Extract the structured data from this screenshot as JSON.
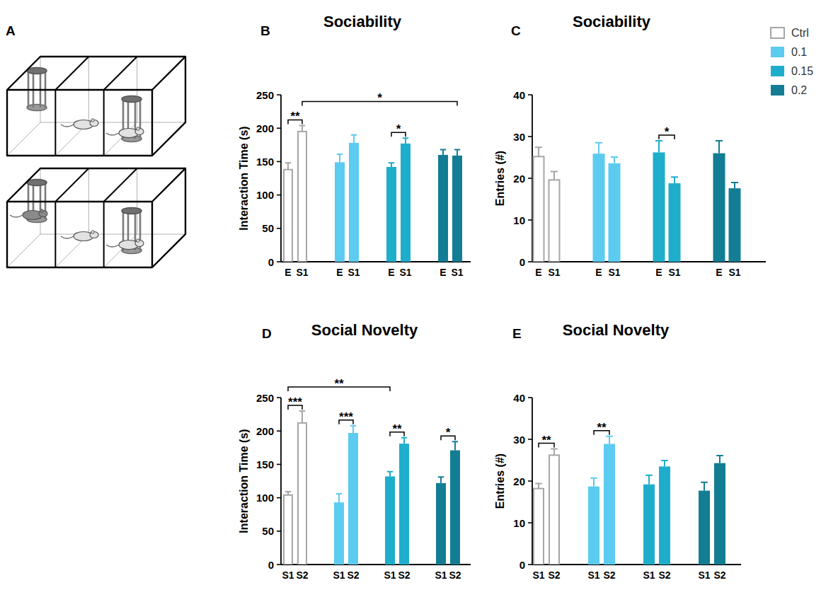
{
  "diagram": {
    "label": "A"
  },
  "chart_data": [
    {
      "type": "bar",
      "panel": "B",
      "title": "Sociability",
      "ylabel": "Interaction Time (s)",
      "categories": [
        "E",
        "S1"
      ],
      "ylim": [
        0,
        250
      ],
      "yticks": [
        0,
        50,
        100,
        150,
        200,
        250
      ],
      "series": [
        {
          "name": "Ctrl",
          "color": "#a6a6a6",
          "type": "hollow",
          "values": [
            138,
            195
          ],
          "errors": [
            10,
            9
          ]
        },
        {
          "name": "0.1",
          "color": "#5ccbf0",
          "type": "bar",
          "values": [
            149,
            178
          ],
          "errors": [
            12,
            12
          ]
        },
        {
          "name": "0.15",
          "color": "#1eaecb",
          "type": "bar",
          "values": [
            142,
            177
          ],
          "errors": [
            6,
            8
          ]
        },
        {
          "name": "0.2",
          "color": "#137d93",
          "type": "bar",
          "values": [
            160,
            159
          ],
          "errors": [
            8,
            9
          ]
        }
      ],
      "annotations": [
        {
          "text": "**",
          "from": {
            "series": 0,
            "category": 0
          },
          "to": {
            "series": 0,
            "category": 1
          }
        },
        {
          "text": "*",
          "from": {
            "series": 0,
            "category": 1
          },
          "to": {
            "series": 3,
            "category": 1
          }
        },
        {
          "text": "*",
          "from": {
            "series": 2,
            "category": 0
          },
          "to": {
            "series": 2,
            "category": 1
          }
        }
      ]
    },
    {
      "type": "bar",
      "panel": "C",
      "title": "Sociability",
      "ylabel": "Entries (#)",
      "legend": "top-right",
      "categories": [
        "E",
        "S1"
      ],
      "ylim": [
        0,
        40
      ],
      "yticks": [
        0,
        10,
        20,
        30,
        40
      ],
      "series": [
        {
          "name": "Ctrl",
          "color": "#a6a6a6",
          "type": "hollow",
          "values": [
            25.2,
            19.6
          ],
          "errors": [
            2.2,
            2
          ]
        },
        {
          "name": "0.1",
          "color": "#5ccbf0",
          "type": "bar",
          "values": [
            25.9,
            23.6
          ],
          "errors": [
            2.6,
            1.5
          ]
        },
        {
          "name": "0.15",
          "color": "#1eaecb",
          "type": "bar",
          "values": [
            26.2,
            18.8
          ],
          "errors": [
            2.8,
            1.5
          ]
        },
        {
          "name": "0.2",
          "color": "#137d93",
          "type": "bar",
          "values": [
            26,
            17.6
          ],
          "errors": [
            3,
            1.4
          ]
        }
      ],
      "annotations": [
        {
          "text": "*",
          "from": {
            "series": 2,
            "category": 0
          },
          "to": {
            "series": 2,
            "category": 1
          }
        }
      ]
    },
    {
      "type": "bar",
      "panel": "D",
      "title": "Social Novelty",
      "ylabel": "Interaction Time (s)",
      "categories": [
        "S1",
        "S2"
      ],
      "ylim": [
        0,
        250
      ],
      "yticks": [
        0,
        50,
        100,
        150,
        200,
        250
      ],
      "series": [
        {
          "name": "Ctrl",
          "color": "#a6a6a6",
          "type": "hollow",
          "values": [
            104,
            212
          ],
          "errors": [
            5,
            18
          ]
        },
        {
          "name": "0.1",
          "color": "#5ccbf0",
          "type": "bar",
          "values": [
            93,
            197
          ],
          "errors": [
            13,
            11
          ]
        },
        {
          "name": "0.15",
          "color": "#1eaecb",
          "type": "bar",
          "values": [
            132,
            181
          ],
          "errors": [
            7,
            9
          ]
        },
        {
          "name": "0.2",
          "color": "#137d93",
          "type": "bar",
          "values": [
            122,
            171
          ],
          "errors": [
            9,
            13
          ]
        }
      ],
      "annotations": [
        {
          "text": "***",
          "from": {
            "series": 0,
            "category": 0
          },
          "to": {
            "series": 0,
            "category": 1
          }
        },
        {
          "text": "**",
          "from": {
            "series": 0,
            "category": 0
          },
          "to": {
            "series": 2,
            "category": 0
          }
        },
        {
          "text": "***",
          "from": {
            "series": 1,
            "category": 0
          },
          "to": {
            "series": 1,
            "category": 1
          }
        },
        {
          "text": "**",
          "from": {
            "series": 2,
            "category": 0
          },
          "to": {
            "series": 2,
            "category": 1
          }
        },
        {
          "text": "*",
          "from": {
            "series": 3,
            "category": 0
          },
          "to": {
            "series": 3,
            "category": 1
          }
        }
      ]
    },
    {
      "type": "bar",
      "panel": "E",
      "title": "Social Novelty",
      "ylabel": "Entries (#)",
      "categories": [
        "S1",
        "S2"
      ],
      "ylim": [
        0,
        40
      ],
      "yticks": [
        0,
        10,
        20,
        30,
        40
      ],
      "series": [
        {
          "name": "Ctrl",
          "color": "#a6a6a6",
          "type": "hollow",
          "values": [
            18.2,
            26.2
          ],
          "errors": [
            1.2,
            1.5
          ]
        },
        {
          "name": "0.1",
          "color": "#5ccbf0",
          "type": "bar",
          "values": [
            18.7,
            28.9
          ],
          "errors": [
            2,
            1.8
          ]
        },
        {
          "name": "0.15",
          "color": "#1eaecb",
          "type": "bar",
          "values": [
            19.2,
            23.5
          ],
          "errors": [
            2.2,
            1.4
          ]
        },
        {
          "name": "0.2",
          "color": "#137d93",
          "type": "bar",
          "values": [
            17.7,
            24.3
          ],
          "errors": [
            2,
            1.8
          ]
        }
      ],
      "annotations": [
        {
          "text": "**",
          "from": {
            "series": 0,
            "category": 0
          },
          "to": {
            "series": 0,
            "category": 1
          }
        },
        {
          "text": "**",
          "from": {
            "series": 1,
            "category": 0
          },
          "to": {
            "series": 1,
            "category": 1
          }
        }
      ]
    }
  ]
}
